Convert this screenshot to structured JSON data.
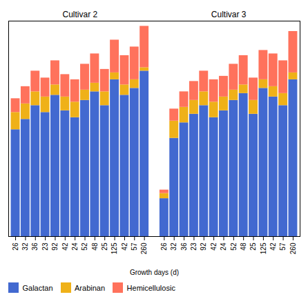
{
  "chart_data": {
    "type": "bar",
    "stacked": true,
    "x_label": "Growth days (d)",
    "annotations": [
      "Cultivar 2",
      "Cultivar 3"
    ],
    "categories": [
      "26",
      "32",
      "36",
      "23",
      "92",
      "42",
      "24",
      "52",
      "48",
      "25",
      "125",
      "42",
      "57",
      "260",
      "26",
      "32",
      "36",
      "23",
      "92",
      "42",
      "24",
      "52",
      "48",
      "25",
      "125",
      "42",
      "57",
      "260"
    ],
    "series": [
      {
        "name": "Galactan",
        "values": [
          62,
          68,
          76,
          72,
          82,
          73,
          69,
          79,
          84,
          76,
          91,
          82,
          86,
          96,
          22,
          57,
          66,
          71,
          76,
          69,
          73,
          79,
          83,
          71,
          86,
          81,
          76,
          91
        ]
      },
      {
        "name": "Arabinan",
        "values": [
          10,
          9,
          8,
          9,
          6,
          8,
          9,
          6,
          5,
          8,
          4,
          6,
          5,
          2,
          3,
          10,
          9,
          8,
          8,
          9,
          8,
          6,
          5,
          8,
          5,
          6,
          7,
          4
        ]
      },
      {
        "name": "Hemicellulosic",
        "values": [
          8,
          10,
          12,
          11,
          14,
          13,
          13,
          15,
          17,
          13,
          19,
          17,
          19,
          24,
          2,
          7,
          9,
          11,
          12,
          13,
          12,
          15,
          17,
          13,
          17,
          19,
          19,
          24
        ]
      }
    ],
    "ylim": [
      0,
      125
    ],
    "yticks": [],
    "tick_labels": "x",
    "grid": false,
    "legend": "bottom"
  }
}
